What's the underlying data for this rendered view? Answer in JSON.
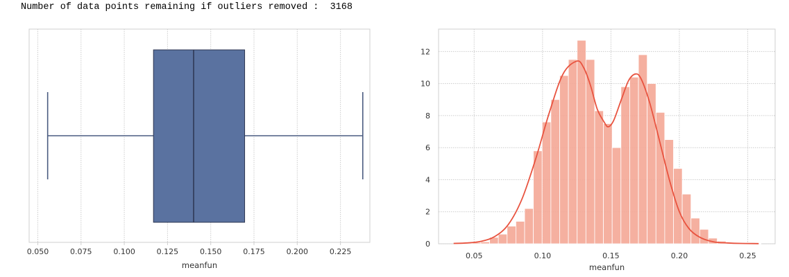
{
  "output": {
    "label": "Number of data points remaining if outliers removed :",
    "value": "3168"
  },
  "chart_data": [
    {
      "type": "boxplot",
      "xlabel": "meanfun",
      "xlim": [
        0.045,
        0.242
      ],
      "xticks": [
        "0.050",
        "0.075",
        "0.100",
        "0.125",
        "0.150",
        "0.175",
        "0.200",
        "0.225"
      ],
      "whisker_low": 0.0557,
      "q1": 0.1169,
      "median": 0.1401,
      "q3": 0.1696,
      "whisker_high": 0.2379,
      "box_color": "#5a72a0",
      "grid": true
    },
    {
      "type": "histogram",
      "xlabel": "meanfun",
      "xlim": [
        0.024,
        0.27
      ],
      "ylim": [
        0,
        13.4
      ],
      "xticks": [
        "0.05",
        "0.10",
        "0.15",
        "0.20",
        "0.25"
      ],
      "yticks": [
        "0",
        "2",
        "4",
        "6",
        "8",
        "10",
        "12"
      ],
      "bin_edges": [
        0.0357,
        0.0421,
        0.0485,
        0.0549,
        0.0613,
        0.0677,
        0.0741,
        0.0805,
        0.0869,
        0.0933,
        0.0997,
        0.1061,
        0.1125,
        0.1189,
        0.1253,
        0.1317,
        0.1381,
        0.1445,
        0.1509,
        0.1573,
        0.1637,
        0.1701,
        0.1765,
        0.1829,
        0.1893,
        0.1957,
        0.2021,
        0.2085,
        0.2149,
        0.2213,
        0.2277,
        0.2341,
        0.2405,
        0.2469,
        0.2533,
        0.2597
      ],
      "densities": [
        0.04,
        0.05,
        0.08,
        0.12,
        0.4,
        0.6,
        1.1,
        1.4,
        2.2,
        5.8,
        7.6,
        9.0,
        10.5,
        11.5,
        12.7,
        11.5,
        8.3,
        7.5,
        6.0,
        9.8,
        10.4,
        11.8,
        10.0,
        8.2,
        6.5,
        4.7,
        3.1,
        1.6,
        0.9,
        0.35,
        0.16,
        0.08,
        0.05,
        0.03,
        0.02
      ],
      "kde": {
        "x": [
          0.035,
          0.045,
          0.055,
          0.065,
          0.075,
          0.085,
          0.095,
          0.105,
          0.115,
          0.125,
          0.13,
          0.135,
          0.14,
          0.145,
          0.148,
          0.152,
          0.158,
          0.163,
          0.168,
          0.172,
          0.178,
          0.185,
          0.193,
          0.2,
          0.207,
          0.215,
          0.225,
          0.235,
          0.245,
          0.258
        ],
        "y": [
          0.02,
          0.05,
          0.15,
          0.45,
          1.2,
          2.8,
          5.3,
          8.2,
          10.6,
          11.4,
          11.0,
          9.9,
          8.4,
          7.6,
          7.3,
          7.7,
          9.1,
          10.2,
          10.6,
          10.3,
          8.9,
          6.6,
          3.9,
          2.0,
          0.95,
          0.4,
          0.12,
          0.05,
          0.02,
          0.01
        ]
      },
      "bar_color": "#f4a796",
      "line_color": "#e8533f",
      "grid": true
    }
  ]
}
